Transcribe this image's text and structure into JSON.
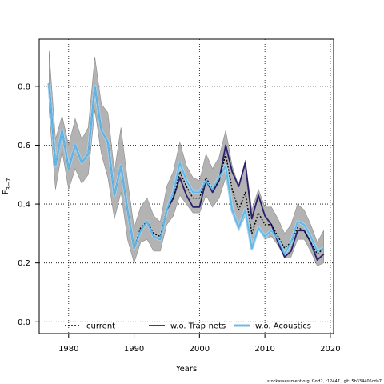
{
  "chart_data": {
    "type": "line",
    "xlabel": "Years",
    "ylabel": "F",
    "ylabel_sub": "3−7",
    "xlim": [
      1975.5,
      2020.5
    ],
    "ylim": [
      -0.04,
      0.96
    ],
    "x_ticks": [
      1980,
      1990,
      2000,
      2010,
      2020
    ],
    "y_ticks": [
      0.0,
      0.2,
      0.4,
      0.6,
      0.8
    ],
    "grid": true,
    "legend_position": "bottom",
    "x": [
      1977,
      1978,
      1979,
      1980,
      1981,
      1982,
      1983,
      1984,
      1985,
      1986,
      1987,
      1988,
      1989,
      1990,
      1991,
      1992,
      1993,
      1994,
      1995,
      1996,
      1997,
      1998,
      1999,
      2000,
      2001,
      2002,
      2003,
      2004,
      2005,
      2006,
      2007,
      2008,
      2009,
      2010,
      2011,
      2012,
      2013,
      2014,
      2015,
      2016,
      2017,
      2018,
      2019
    ],
    "band": {
      "upper": [
        0.92,
        0.62,
        0.7,
        0.6,
        0.69,
        0.62,
        0.66,
        0.9,
        0.74,
        0.71,
        0.51,
        0.66,
        0.48,
        0.32,
        0.39,
        0.42,
        0.36,
        0.34,
        0.46,
        0.51,
        0.61,
        0.53,
        0.49,
        0.48,
        0.57,
        0.52,
        0.56,
        0.65,
        0.53,
        0.46,
        0.55,
        0.38,
        0.45,
        0.39,
        0.39,
        0.35,
        0.3,
        0.33,
        0.4,
        0.38,
        0.33,
        0.27,
        0.31
      ],
      "lower": [
        0.72,
        0.45,
        0.58,
        0.45,
        0.52,
        0.47,
        0.5,
        0.72,
        0.57,
        0.49,
        0.35,
        0.44,
        0.28,
        0.2,
        0.27,
        0.28,
        0.24,
        0.24,
        0.33,
        0.36,
        0.43,
        0.4,
        0.37,
        0.37,
        0.43,
        0.39,
        0.42,
        0.49,
        0.38,
        0.31,
        0.36,
        0.25,
        0.32,
        0.28,
        0.29,
        0.26,
        0.22,
        0.22,
        0.28,
        0.28,
        0.24,
        0.19,
        0.2
      ]
    },
    "series": [
      {
        "name": "current",
        "color": "#000000",
        "dash": "2,2",
        "width": 1.4,
        "values": [
          0.81,
          0.53,
          0.65,
          0.52,
          0.6,
          0.54,
          0.57,
          0.8,
          0.65,
          0.61,
          0.43,
          0.53,
          0.38,
          0.25,
          0.32,
          0.34,
          0.3,
          0.29,
          0.38,
          0.42,
          0.51,
          0.46,
          0.42,
          0.42,
          0.49,
          0.45,
          0.48,
          0.57,
          0.45,
          0.38,
          0.44,
          0.3,
          0.37,
          0.33,
          0.33,
          0.29,
          0.25,
          0.27,
          0.32,
          0.31,
          0.27,
          0.23,
          0.25
        ]
      },
      {
        "name": "w.o. Trap-nets",
        "color": "#2a1f6e",
        "dash": "",
        "width": 1.8,
        "values": [
          0.81,
          0.53,
          0.65,
          0.52,
          0.6,
          0.54,
          0.57,
          0.8,
          0.65,
          0.61,
          0.43,
          0.53,
          0.38,
          0.25,
          0.31,
          0.34,
          0.29,
          0.28,
          0.38,
          0.42,
          0.49,
          0.43,
          0.39,
          0.39,
          0.48,
          0.44,
          0.48,
          0.6,
          0.51,
          0.46,
          0.54,
          0.35,
          0.43,
          0.36,
          0.33,
          0.27,
          0.22,
          0.24,
          0.31,
          0.31,
          0.27,
          0.21,
          0.23
        ]
      },
      {
        "name": "w.o. Acoustics",
        "color": "#5fb8e8",
        "dash": "",
        "width": 1.8,
        "values": [
          0.81,
          0.53,
          0.65,
          0.52,
          0.6,
          0.54,
          0.57,
          0.8,
          0.65,
          0.61,
          0.43,
          0.53,
          0.38,
          0.25,
          0.31,
          0.34,
          0.29,
          0.28,
          0.38,
          0.44,
          0.54,
          0.48,
          0.44,
          0.44,
          0.48,
          0.45,
          0.49,
          0.53,
          0.38,
          0.32,
          0.38,
          0.25,
          0.32,
          0.29,
          0.31,
          0.28,
          0.23,
          0.27,
          0.34,
          0.33,
          0.29,
          0.24,
          0.25
        ]
      },
      {
        "name": "w.o. Acoustics (outer)",
        "color": "#a5d2ec",
        "dash": "",
        "width": 4,
        "values": [
          0.81,
          0.53,
          0.65,
          0.52,
          0.6,
          0.54,
          0.57,
          0.8,
          0.65,
          0.61,
          0.43,
          0.53,
          0.38,
          0.25,
          0.31,
          0.34,
          0.29,
          0.28,
          0.38,
          0.44,
          0.54,
          0.48,
          0.44,
          0.44,
          0.48,
          0.45,
          0.49,
          0.53,
          0.38,
          0.32,
          0.38,
          0.25,
          0.32,
          0.29,
          0.31,
          0.28,
          0.23,
          0.27,
          0.34,
          0.33,
          0.29,
          0.24,
          0.25
        ]
      }
    ],
    "legend": [
      "current",
      "w.o. Trap-nets",
      "w.o. Acoustics"
    ],
    "credit": "stockassessment.org, GoH2, r12447 , git: 5b334405cda7"
  }
}
